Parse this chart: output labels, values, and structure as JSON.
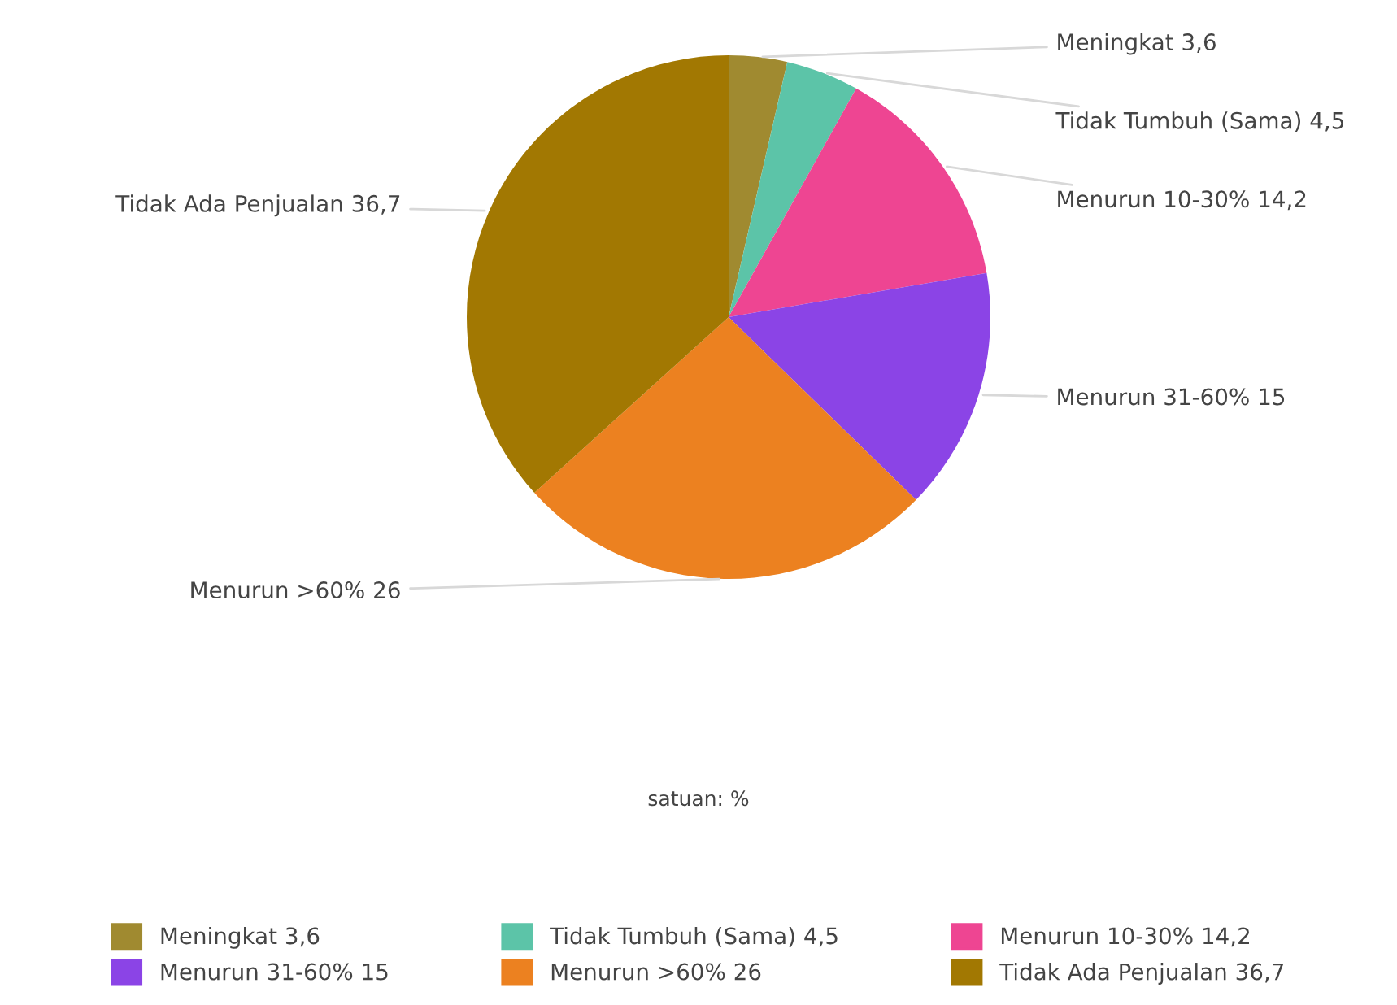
{
  "chart_data": {
    "type": "pie",
    "categories": [
      "Meningkat 3,6",
      "Tidak Tumbuh (Sama) 4,5",
      "Menurun 10-30% 14,2",
      "Menurun 31-60% 15",
      "Menurun >60% 26",
      "Tidak Ada Penjualan 36,7"
    ],
    "values": [
      3.6,
      4.5,
      14.2,
      15,
      26,
      36.7
    ],
    "colors": [
      "#a08a30",
      "#5cc4a8",
      "#ee4592",
      "#8b44e6",
      "#ec8120",
      "#a27802"
    ],
    "annotations": [
      "satuan: %"
    ],
    "legend": "bottom"
  }
}
